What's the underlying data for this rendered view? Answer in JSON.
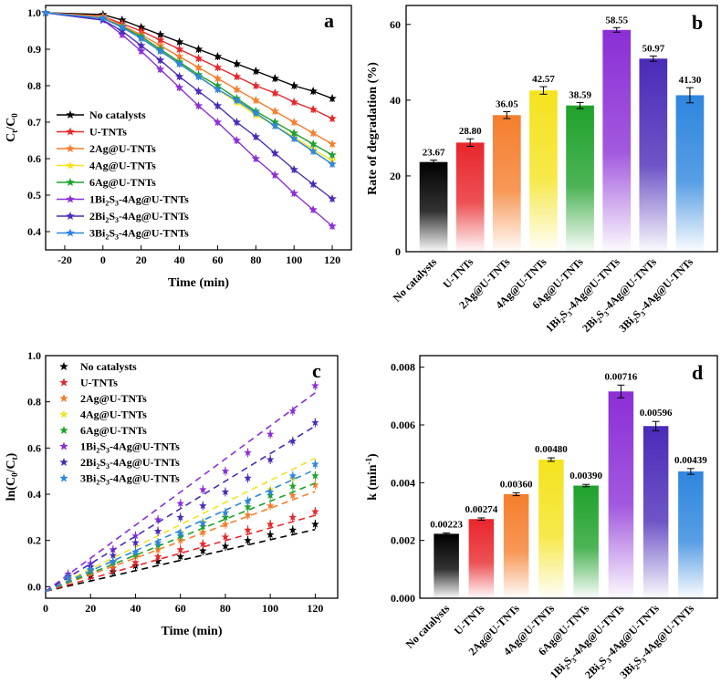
{
  "colors": {
    "No catalysts": "#000000",
    "U-TNTs": "#e8262b",
    "2Ag@U-TNTs": "#f57e2d",
    "4Ag@U-TNTs": "#f4e31e",
    "6Ag@U-TNTs": "#1fa12b",
    "1Bi2S3-4Ag@U-TNTs": "#8b2fd6",
    "2Bi2S3-4Ag@U-TNTs": "#4a2ab8",
    "3Bi2S3-4Ag@U-TNTs": "#2e86de"
  },
  "legend_labels": [
    {
      "key": "No catalysts",
      "text": "No catalysts",
      "sub": ""
    },
    {
      "key": "U-TNTs",
      "text": "U-TNTs",
      "sub": ""
    },
    {
      "key": "2Ag@U-TNTs",
      "text": "2Ag@U-TNTs",
      "sub": ""
    },
    {
      "key": "4Ag@U-TNTs",
      "text": "4Ag@U-TNTs",
      "sub": ""
    },
    {
      "key": "6Ag@U-TNTs",
      "text": "6Ag@U-TNTs",
      "sub": ""
    },
    {
      "key": "1Bi2S3-4Ag@U-TNTs",
      "text": "1Bi2S3-4Ag@U-TNTs",
      "sub": "bi"
    },
    {
      "key": "2Bi2S3-4Ag@U-TNTs",
      "text": "2Bi2S3-4Ag@U-TNTs",
      "sub": "bi"
    },
    {
      "key": "3Bi2S3-4Ag@U-TNTs",
      "text": "3Bi2S3-4Ag@U-TNTs",
      "sub": "bi"
    }
  ],
  "chart_data": [
    {
      "panel": "a",
      "type": "line",
      "xlabel": "Time (min)",
      "ylabel": "Ct/C0",
      "xlim": [
        -30,
        130
      ],
      "ylim": [
        0.35,
        1.02
      ],
      "xticks": [
        -20,
        0,
        20,
        40,
        60,
        80,
        100,
        120
      ],
      "yticks": [
        0.4,
        0.5,
        0.6,
        0.7,
        0.8,
        0.9,
        1.0
      ],
      "x": [
        -30,
        0,
        10,
        20,
        30,
        40,
        50,
        60,
        70,
        80,
        90,
        100,
        110,
        120
      ],
      "series": [
        {
          "name": "No catalysts",
          "values": [
            1.0,
            0.995,
            0.98,
            0.96,
            0.94,
            0.92,
            0.9,
            0.88,
            0.86,
            0.84,
            0.82,
            0.8,
            0.785,
            0.765
          ]
        },
        {
          "name": "U-TNTs",
          "values": [
            1.0,
            0.99,
            0.97,
            0.95,
            0.925,
            0.9,
            0.875,
            0.85,
            0.825,
            0.8,
            0.78,
            0.755,
            0.735,
            0.71
          ]
        },
        {
          "name": "2Ag@U-TNTs",
          "values": [
            1.0,
            0.99,
            0.965,
            0.94,
            0.91,
            0.88,
            0.85,
            0.82,
            0.79,
            0.76,
            0.73,
            0.7,
            0.67,
            0.64
          ]
        },
        {
          "name": "4Ag@U-TNTs",
          "values": [
            1.0,
            0.985,
            0.96,
            0.93,
            0.895,
            0.86,
            0.825,
            0.79,
            0.755,
            0.72,
            0.69,
            0.66,
            0.625,
            0.595
          ]
        },
        {
          "name": "6Ag@U-TNTs",
          "values": [
            1.0,
            0.985,
            0.962,
            0.935,
            0.9,
            0.865,
            0.83,
            0.8,
            0.765,
            0.73,
            0.7,
            0.67,
            0.64,
            0.61
          ]
        },
        {
          "name": "1Bi2S3-4Ag@U-TNTs",
          "values": [
            1.0,
            0.98,
            0.94,
            0.895,
            0.845,
            0.795,
            0.745,
            0.7,
            0.65,
            0.6,
            0.555,
            0.505,
            0.46,
            0.415
          ]
        },
        {
          "name": "2Bi2S3-4Ag@U-TNTs",
          "values": [
            1.0,
            0.98,
            0.95,
            0.91,
            0.87,
            0.825,
            0.785,
            0.745,
            0.7,
            0.66,
            0.615,
            0.57,
            0.53,
            0.49
          ]
        },
        {
          "name": "3Bi2S3-4Ag@U-TNTs",
          "values": [
            1.0,
            0.985,
            0.96,
            0.93,
            0.895,
            0.86,
            0.825,
            0.79,
            0.76,
            0.725,
            0.69,
            0.655,
            0.62,
            0.585
          ]
        }
      ]
    },
    {
      "panel": "b",
      "type": "bar",
      "ylabel": "Rate of degradation (%)",
      "ylim": [
        0,
        65
      ],
      "yticks": [
        0,
        20,
        40,
        60
      ],
      "categories": [
        "No catalysts",
        "U-TNTs",
        "2Ag@U-TNTs",
        "4Ag@U-TNTs",
        "6Ag@U-TNTs",
        "1Bi2S3-4Ag@U-TNTs",
        "2Bi2S3-4Ag@U-TNTs",
        "3Bi2S3-4Ag@U-TNTs"
      ],
      "values": [
        23.67,
        28.8,
        36.05,
        42.57,
        38.59,
        58.55,
        50.97,
        41.3
      ],
      "value_labels": [
        "23.67",
        "28.80",
        "36.05",
        "42.57",
        "38.59",
        "58.55",
        "50.97",
        "41.30"
      ],
      "errors": [
        0.5,
        1.0,
        0.9,
        1.0,
        0.8,
        0.6,
        0.7,
        2.0
      ]
    },
    {
      "panel": "c",
      "type": "scatter",
      "xlabel": "Time (min)",
      "ylabel": "ln(C0/Ct)",
      "xlim": [
        0,
        130
      ],
      "ylim": [
        -0.05,
        1.0
      ],
      "xticks": [
        0,
        20,
        40,
        60,
        80,
        100,
        120
      ],
      "yticks": [
        0.0,
        0.2,
        0.4,
        0.6,
        0.8,
        1.0
      ],
      "x": [
        10,
        20,
        30,
        40,
        50,
        60,
        70,
        80,
        90,
        100,
        110,
        120
      ],
      "series": [
        {
          "name": "No catalysts",
          "slope": 0.00223,
          "values": [
            0.03,
            0.045,
            0.065,
            0.09,
            0.11,
            0.13,
            0.155,
            0.175,
            0.2,
            0.225,
            0.245,
            0.27
          ]
        },
        {
          "name": "U-TNTs",
          "slope": 0.00274,
          "values": [
            0.035,
            0.055,
            0.08,
            0.105,
            0.13,
            0.16,
            0.185,
            0.215,
            0.245,
            0.27,
            0.3,
            0.325
          ]
        },
        {
          "name": "2Ag@U-TNTs",
          "slope": 0.0036,
          "values": [
            0.035,
            0.065,
            0.095,
            0.13,
            0.16,
            0.2,
            0.235,
            0.27,
            0.31,
            0.35,
            0.395,
            0.44
          ]
        },
        {
          "name": "4Ag@U-TNTs",
          "slope": 0.0048,
          "values": [
            0.04,
            0.075,
            0.11,
            0.15,
            0.19,
            0.235,
            0.28,
            0.32,
            0.37,
            0.42,
            0.47,
            0.53
          ]
        },
        {
          "name": "6Ag@U-TNTs",
          "slope": 0.0039,
          "values": [
            0.04,
            0.07,
            0.105,
            0.14,
            0.18,
            0.22,
            0.26,
            0.3,
            0.345,
            0.395,
            0.435,
            0.48
          ]
        },
        {
          "name": "1Bi2S3-4Ag@U-TNTs",
          "slope": 0.00716,
          "values": [
            0.055,
            0.1,
            0.16,
            0.22,
            0.29,
            0.36,
            0.42,
            0.5,
            0.58,
            0.66,
            0.76,
            0.87
          ]
        },
        {
          "name": "2Bi2S3-4Ag@U-TNTs",
          "slope": 0.00596,
          "values": [
            0.045,
            0.085,
            0.135,
            0.19,
            0.24,
            0.3,
            0.35,
            0.41,
            0.47,
            0.55,
            0.63,
            0.71
          ]
        },
        {
          "name": "3Bi2S3-4Ag@U-TNTs",
          "slope": 0.00439,
          "values": [
            0.04,
            0.075,
            0.11,
            0.15,
            0.19,
            0.23,
            0.275,
            0.32,
            0.37,
            0.41,
            0.48,
            0.53
          ]
        }
      ]
    },
    {
      "panel": "d",
      "type": "bar",
      "ylabel": "k (min-1)",
      "ylim": [
        0,
        0.0084
      ],
      "yticks": [
        0.0,
        0.002,
        0.004,
        0.006,
        0.008
      ],
      "ytick_labels": [
        "0.000",
        "0.002",
        "0.004",
        "0.006",
        "0.008"
      ],
      "categories": [
        "No catalysts",
        "U-TNTs",
        "2Ag@U-TNTs",
        "4Ag@U-TNTs",
        "6Ag@U-TNTs",
        "1Bi2S3-4Ag@U-TNTs",
        "2Bi2S3-4Ag@U-TNTs",
        "3Bi2S3-4Ag@U-TNTs"
      ],
      "values": [
        0.00223,
        0.00274,
        0.0036,
        0.0048,
        0.0039,
        0.00716,
        0.00596,
        0.00439
      ],
      "value_labels": [
        "0.00223",
        "0.00274",
        "0.00360",
        "0.00480",
        "0.00390",
        "0.00716",
        "0.00596",
        "0.00439"
      ],
      "errors": [
        3e-05,
        4e-05,
        5e-05,
        6e-05,
        4e-05,
        0.00022,
        0.00016,
        0.0001
      ]
    }
  ]
}
